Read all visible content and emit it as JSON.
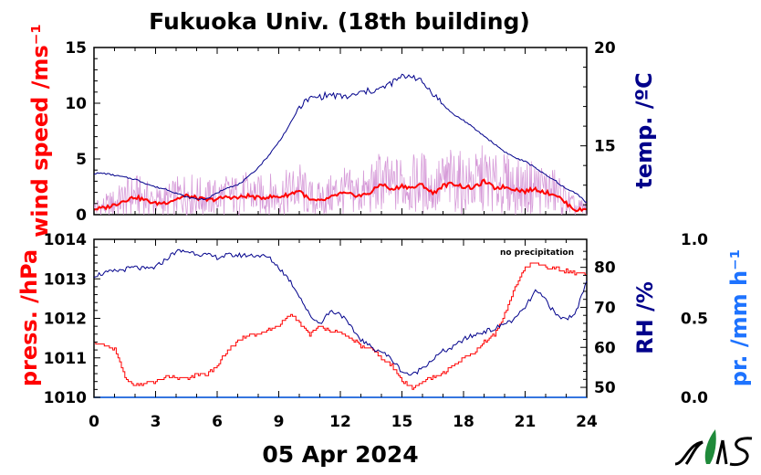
{
  "title": "Fukuoka Univ. (18th building)",
  "date_label": "05 Apr 2024",
  "note": "no precipitation",
  "colors": {
    "wind": "#ff0000",
    "wind_raw": "#d69ad8",
    "temp": "#00008b",
    "press": "#ff0000",
    "rh": "#00008b",
    "precip": "#1e73ff"
  },
  "chart_data": [
    {
      "type": "line",
      "panel": "upper",
      "xlim": [
        0,
        24
      ],
      "x_ticks": [
        "0",
        "3",
        "6",
        "9",
        "12",
        "15",
        "18",
        "21",
        "24"
      ],
      "ylabel_left": "wind speed /ms⁻¹",
      "ylim_left": [
        0,
        15
      ],
      "y_ticks_left": [
        "0",
        "5",
        "10",
        "15"
      ],
      "ylabel_right": "temp. /ºC",
      "ylim_right": [
        11.5,
        20
      ],
      "y_ticks_right": [
        "15",
        "20"
      ],
      "series": [
        {
          "axis": "left",
          "x": [
            0,
            0.5,
            1,
            1.5,
            2,
            2.5,
            3,
            3.5,
            4,
            4.5,
            5,
            5.5,
            6,
            6.5,
            7,
            7.5,
            8,
            8.5,
            9,
            9.5,
            10,
            10.5,
            11,
            11.5,
            12,
            12.5,
            13,
            13.5,
            14,
            14.5,
            15,
            15.5,
            16,
            16.5,
            17,
            17.5,
            18,
            18.5,
            19,
            19.5,
            20,
            20.5,
            21,
            21.5,
            22,
            22.5,
            23,
            23.5,
            24
          ],
          "values": [
            0.5,
            0.6,
            0.9,
            1.3,
            1.6,
            1.3,
            1.0,
            1.1,
            1.4,
            1.7,
            1.5,
            1.3,
            1.4,
            1.6,
            1.5,
            1.7,
            1.5,
            1.6,
            1.6,
            1.8,
            2.2,
            1.3,
            1.2,
            1.5,
            1.9,
            1.8,
            1.7,
            2.0,
            2.8,
            2.2,
            2.6,
            2.4,
            2.7,
            1.9,
            2.6,
            2.8,
            2.5,
            2.4,
            3.0,
            2.4,
            2.5,
            2.3,
            2.1,
            2.3,
            2.0,
            1.8,
            1.0,
            0.4,
            0.5
          ]
        },
        {
          "axis": "right",
          "x": [
            0,
            0.5,
            1,
            1.5,
            2,
            2.5,
            3,
            3.5,
            4,
            4.5,
            5,
            5.5,
            6,
            6.5,
            7,
            7.5,
            8,
            8.5,
            9,
            9.5,
            10,
            10.5,
            11,
            11.5,
            12,
            12.5,
            13,
            13.5,
            14,
            14.5,
            15,
            15.5,
            16,
            16.5,
            17,
            17.5,
            18,
            18.5,
            19,
            19.5,
            20,
            20.5,
            21,
            21.5,
            22,
            22.5,
            23,
            23.5,
            24
          ],
          "values": [
            13.6,
            13.6,
            13.5,
            13.4,
            13.3,
            13.1,
            12.9,
            12.8,
            12.6,
            12.4,
            12.3,
            12.3,
            12.6,
            12.9,
            13.0,
            13.4,
            13.9,
            14.5,
            15.2,
            16.0,
            17.0,
            17.4,
            17.5,
            17.6,
            17.5,
            17.5,
            17.7,
            17.8,
            17.9,
            18.2,
            18.5,
            18.6,
            18.2,
            17.7,
            17.1,
            16.6,
            16.3,
            15.9,
            15.5,
            15.1,
            14.7,
            14.4,
            14.2,
            13.9,
            13.5,
            13.2,
            12.8,
            12.6,
            12.1
          ]
        }
      ]
    },
    {
      "type": "line",
      "panel": "lower",
      "xlim": [
        0,
        24
      ],
      "x_ticks": [
        "0",
        "3",
        "6",
        "9",
        "12",
        "15",
        "18",
        "21",
        "24"
      ],
      "ylabel_left": "press. /hPa",
      "ylim_left": [
        1010,
        1014
      ],
      "y_ticks_left": [
        "1010",
        "1011",
        "1012",
        "1013",
        "1014"
      ],
      "ylabel_mid": "RH /%",
      "ylim_mid": [
        47.5,
        87
      ],
      "y_ticks_mid": [
        "50",
        "60",
        "70",
        "80"
      ],
      "ylabel_right": "pr. /mm h⁻¹",
      "ylim_right": [
        0,
        1
      ],
      "y_ticks_right": [
        "0.0",
        "0.5",
        "1.0"
      ],
      "series": [
        {
          "axis": "left",
          "x": [
            0,
            0.5,
            1,
            1.5,
            2,
            2.5,
            3,
            3.5,
            4,
            4.5,
            5,
            5.5,
            6,
            6.5,
            7,
            7.5,
            8,
            8.5,
            9,
            9.5,
            10,
            10.5,
            11,
            11.5,
            12,
            12.5,
            13,
            13.5,
            14,
            14.5,
            15,
            15.5,
            16,
            16.5,
            17,
            17.5,
            18,
            18.5,
            19,
            19.5,
            20,
            20.5,
            21,
            21.5,
            22,
            22.5,
            23,
            23.5,
            24
          ],
          "values": [
            1011.4,
            1011.3,
            1011.2,
            1010.5,
            1010.3,
            1010.35,
            1010.4,
            1010.5,
            1010.5,
            1010.5,
            1010.55,
            1010.6,
            1010.8,
            1011.2,
            1011.4,
            1011.6,
            1011.6,
            1011.7,
            1011.8,
            1012.1,
            1011.9,
            1011.6,
            1011.8,
            1011.7,
            1011.6,
            1011.5,
            1011.3,
            1011.2,
            1011.0,
            1010.8,
            1010.4,
            1010.25,
            1010.4,
            1010.5,
            1010.6,
            1010.8,
            1011.0,
            1011.1,
            1011.4,
            1011.6,
            1012.1,
            1012.8,
            1013.3,
            1013.4,
            1013.3,
            1013.25,
            1013.2,
            1013.15,
            1013.1
          ]
        },
        {
          "axis": "mid",
          "x": [
            0,
            0.5,
            1,
            1.5,
            2,
            2.5,
            3,
            3.5,
            4,
            4.5,
            5,
            5.5,
            6,
            6.5,
            7,
            7.5,
            8,
            8.5,
            9,
            9.5,
            10,
            10.5,
            11,
            11.5,
            12,
            12.5,
            13,
            13.5,
            14,
            14.5,
            15,
            15.5,
            16,
            16.5,
            17,
            17.5,
            18,
            18.5,
            19,
            19.5,
            20,
            20.5,
            21,
            21.5,
            22,
            22.5,
            23,
            23.5,
            24
          ],
          "values": [
            78,
            78.5,
            79,
            79.5,
            80,
            79.5,
            80,
            82,
            84,
            84,
            83.5,
            83,
            82.5,
            83,
            83,
            83,
            83,
            82.5,
            80,
            77,
            73,
            68,
            66,
            69,
            68.5,
            65,
            62,
            60,
            59,
            57,
            54,
            53,
            55,
            57,
            59,
            60,
            62,
            63,
            64,
            64.5,
            66,
            67,
            70,
            74,
            72,
            68,
            67,
            69,
            77
          ]
        },
        {
          "axis": "right",
          "x": [
            0,
            24
          ],
          "values": [
            0,
            0
          ]
        }
      ]
    }
  ]
}
